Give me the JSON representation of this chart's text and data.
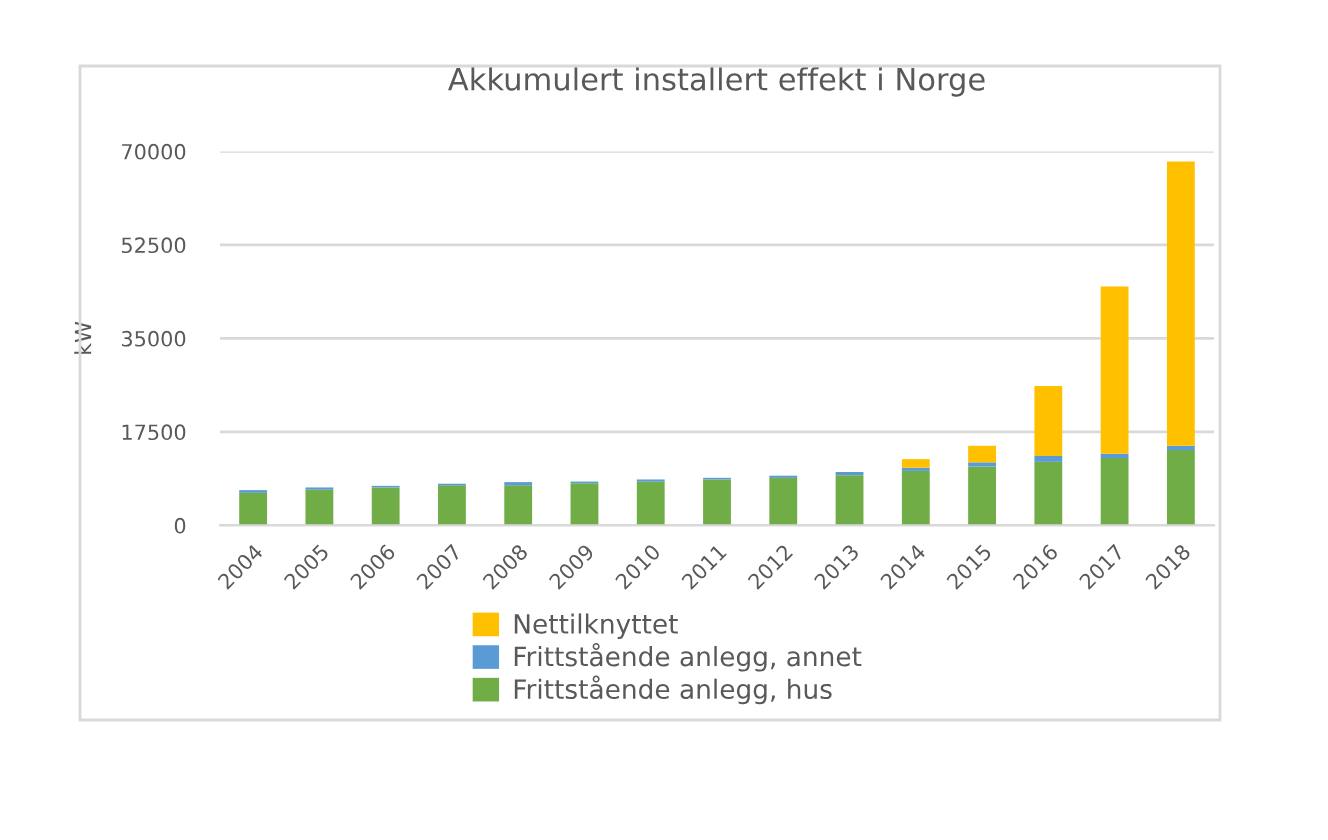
{
  "chart_data": {
    "type": "bar",
    "title": "Akkumulert installert effekt i Norge",
    "ylabel": "kW",
    "categories": [
      "2004",
      "2005",
      "2006",
      "2007",
      "2008",
      "2009",
      "2010",
      "2011",
      "2012",
      "2013",
      "2014",
      "2015",
      "2016",
      "2017",
      "2018"
    ],
    "stacked": true,
    "series": [
      {
        "name": "Frittstående anlegg, hus",
        "color": "#70ad47",
        "values": [
          6100,
          6700,
          7100,
          7500,
          7500,
          7900,
          8200,
          8600,
          8900,
          9400,
          10200,
          11000,
          11900,
          12600,
          14100
        ]
      },
      {
        "name": "Frittstående anlegg, annet",
        "color": "#5b9bd5",
        "values": [
          500,
          400,
          300,
          300,
          600,
          300,
          400,
          300,
          400,
          600,
          600,
          800,
          1100,
          800,
          800
        ]
      },
      {
        "name": "Nettilknyttet",
        "color": "#ffc000",
        "values": [
          null,
          null,
          null,
          null,
          null,
          null,
          null,
          null,
          null,
          null,
          1600,
          3100,
          13100,
          31300,
          53200
        ]
      }
    ],
    "ylim": [
      0,
      70000
    ],
    "yticks": [
      0,
      17500,
      35000,
      52500,
      70000
    ],
    "grid": "y",
    "legend": "bottom"
  }
}
